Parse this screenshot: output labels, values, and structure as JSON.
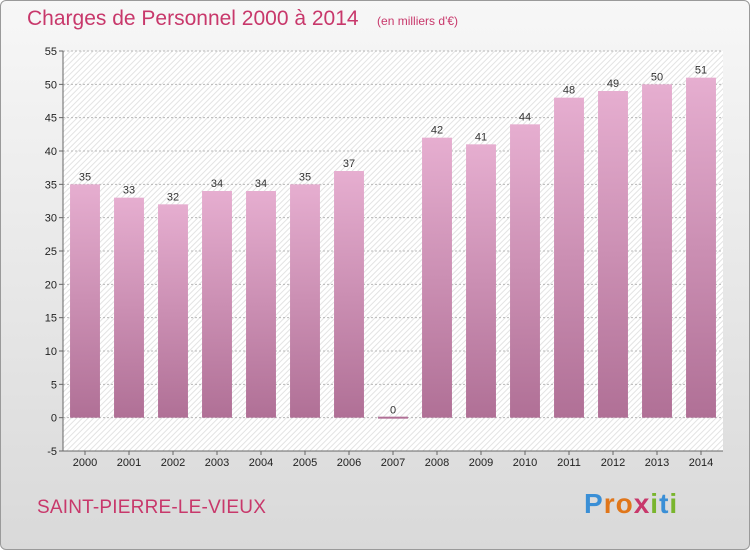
{
  "header": {
    "title": "Charges de Personnel 2000 à 2014",
    "unit": "(en milliers d'€)"
  },
  "footer": {
    "commune": "SAINT-PIERRE-LE-VIEUX",
    "logo": {
      "letters": [
        "P",
        "r",
        "o",
        "x",
        "i",
        "t",
        "i"
      ],
      "colors": [
        "#3a8fd6",
        "#e0761a",
        "#e0761a",
        "#c8386b",
        "#79b52d",
        "#3a8fd6",
        "#79b52d"
      ]
    }
  },
  "colors": {
    "accent": "#c8386b",
    "bar_light": "#e6aed0",
    "bar_dark": "#b07096"
  },
  "chart_data": {
    "type": "bar",
    "title": "Charges de Personnel 2000 à 2014",
    "subtitle": "(en milliers d'€)",
    "categories": [
      "2000",
      "2001",
      "2002",
      "2003",
      "2004",
      "2005",
      "2006",
      "2007",
      "2008",
      "2009",
      "2010",
      "2011",
      "2012",
      "2013",
      "2014"
    ],
    "values": [
      35,
      33,
      32,
      34,
      34,
      35,
      37,
      0,
      42,
      41,
      44,
      48,
      49,
      50,
      51
    ],
    "ylim": [
      -5,
      55
    ],
    "yticks": [
      -5,
      0,
      5,
      10,
      15,
      20,
      25,
      30,
      35,
      40,
      45,
      50,
      55
    ],
    "grid": true,
    "legend": "none"
  }
}
